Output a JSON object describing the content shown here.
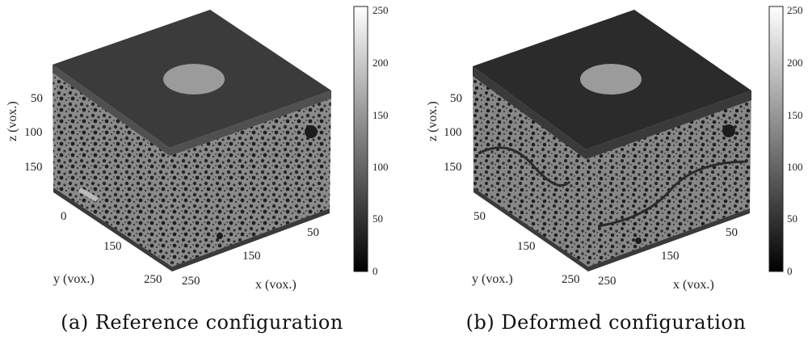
{
  "panels": [
    {
      "caption": "(a) Reference configuration",
      "axes": {
        "z_label": "z (vox.)",
        "y_label": "y (vox.)",
        "x_label": "x (vox.)",
        "z_ticks": [
          "50",
          "100",
          "150"
        ],
        "y_ticks": [
          "0",
          "150",
          "250"
        ],
        "x_ticks": [
          "50",
          "150",
          "250"
        ]
      },
      "colorbar": {
        "ticks": [
          "250",
          "200",
          "150",
          "100",
          "50",
          "0"
        ],
        "range": [
          0,
          255
        ]
      }
    },
    {
      "caption": "(b) Deformed configuration",
      "axes": {
        "z_label": "z (vox.)",
        "y_label": "y (vox.)",
        "x_label": "x (vox.)",
        "z_ticks": [
          "50",
          "100",
          "150"
        ],
        "y_ticks": [
          "50",
          "150",
          "250"
        ],
        "x_ticks": [
          "50",
          "150",
          "250"
        ]
      },
      "colorbar": {
        "ticks": [
          "250",
          "200",
          "150",
          "100",
          "50",
          "0"
        ],
        "range": [
          0,
          255
        ]
      }
    }
  ],
  "colors": {
    "top_face": "#3a3a3a",
    "top_face_b": "#2c2c2c",
    "disk": "#9a9a9a",
    "side_face": "#6f6f6f"
  }
}
